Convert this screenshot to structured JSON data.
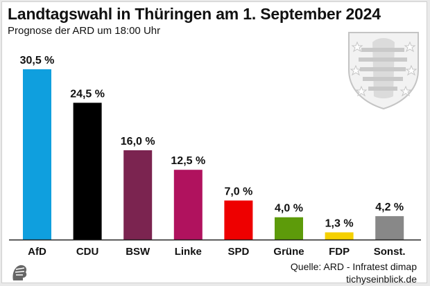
{
  "header": {
    "title": "Landtagswahl in Thüringen am 1. September 2024",
    "subtitle": "Prognose der ARD um 18:00 Uhr"
  },
  "footer": {
    "source": "Quelle: ARD - Infratest dimap",
    "site": "tichyseinblick.de"
  },
  "chart_data": {
    "type": "bar",
    "title": "Landtagswahl in Thüringen am 1. September 2024",
    "subtitle": "Prognose der ARD um 18:00 Uhr",
    "categories": [
      "AfD",
      "CDU",
      "BSW",
      "Linke",
      "SPD",
      "Grüne",
      "FDP",
      "Sonst."
    ],
    "values": [
      30.5,
      24.5,
      16.0,
      12.5,
      7.0,
      4.0,
      1.3,
      4.2
    ],
    "value_labels": [
      "30,5 %",
      "24,5 %",
      "16,0 %",
      "12,5 %",
      "7,0 %",
      "4,0 %",
      "1,3 %",
      "4,2 %"
    ],
    "colors": [
      "#0f9fde",
      "#000000",
      "#7b2450",
      "#b0125e",
      "#ee0000",
      "#5d9b0a",
      "#f5d000",
      "#888888"
    ],
    "ylim": [
      0,
      31
    ],
    "grid": false,
    "legend": "none"
  }
}
